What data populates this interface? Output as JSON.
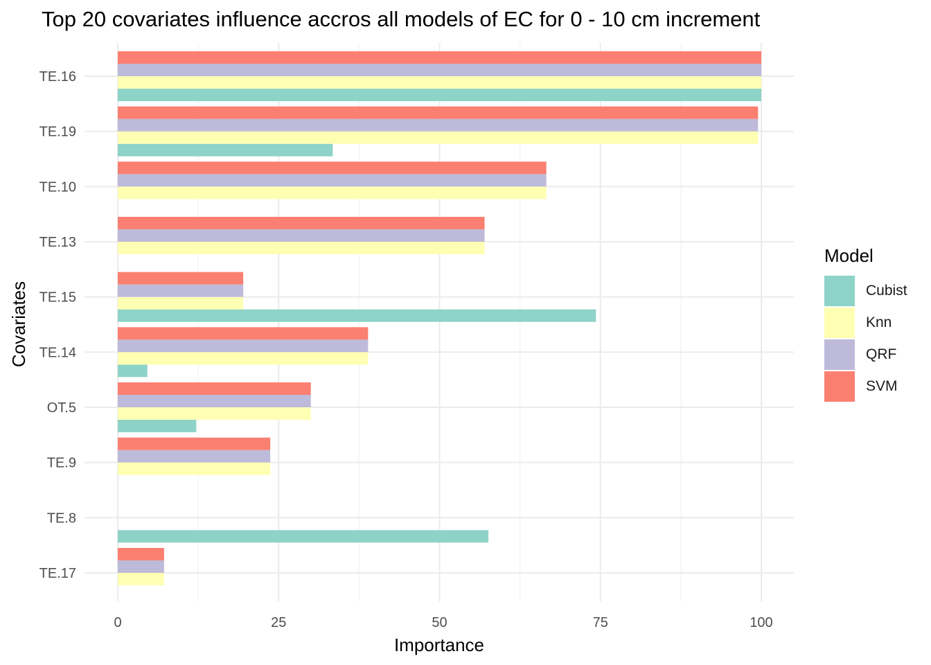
{
  "chart_data": {
    "type": "bar",
    "orientation": "horizontal",
    "title": "Top 20 covariates influence accros all models of EC for 0 - 10 cm increment",
    "xlabel": "Importance",
    "ylabel": "Covariates",
    "xlim": [
      0,
      100
    ],
    "x_ticks": [
      "0",
      "25",
      "50",
      "75",
      "100"
    ],
    "grid": true,
    "legend_title": "Model",
    "legend_position": "right",
    "categories": [
      "TE.16",
      "TE.19",
      "TE.10",
      "TE.13",
      "TE.15",
      "TE.14",
      "OT.5",
      "TE.9",
      "TE.8",
      "TE.17"
    ],
    "series": [
      {
        "name": "Cubist",
        "color": "#8DD3C7",
        "values": [
          100,
          33.4,
          null,
          null,
          74.3,
          4.6,
          12.2,
          null,
          57.6,
          null
        ]
      },
      {
        "name": "Knn",
        "color": "#FFFFB3",
        "values": [
          100,
          99.5,
          66.6,
          57.0,
          19.5,
          38.9,
          30.0,
          23.7,
          null,
          7.2
        ]
      },
      {
        "name": "QRF",
        "color": "#BEBADA",
        "values": [
          100,
          99.5,
          66.6,
          57.0,
          19.5,
          38.9,
          30.0,
          23.7,
          null,
          7.2
        ]
      },
      {
        "name": "SVM",
        "color": "#FB8072",
        "values": [
          100,
          99.5,
          66.6,
          57.0,
          19.5,
          38.9,
          30.0,
          23.7,
          null,
          7.2
        ]
      }
    ]
  }
}
